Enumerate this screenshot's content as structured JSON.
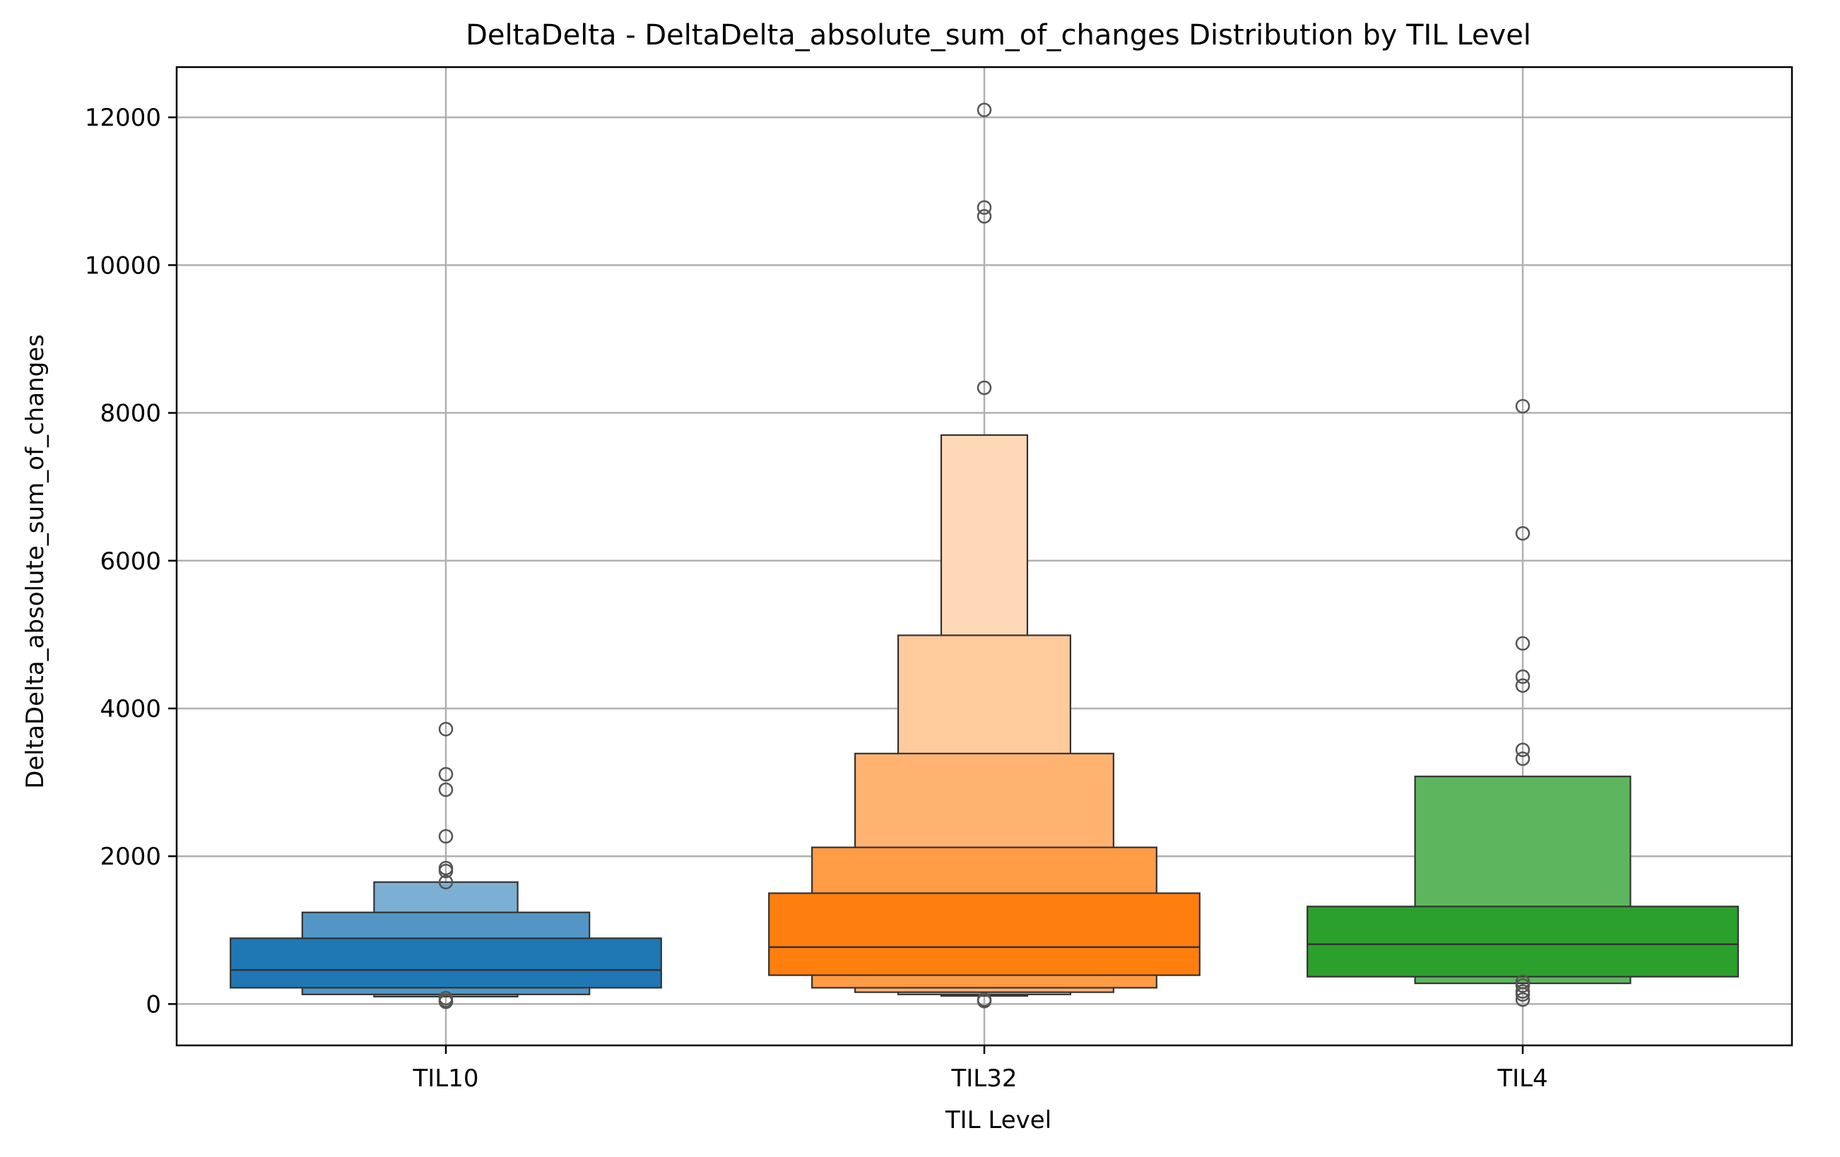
{
  "chart_data": {
    "type": "boxen",
    "title": "DeltaDelta - DeltaDelta_absolute_sum_of_changes Distribution by TIL Level",
    "xlabel": "TIL Level",
    "ylabel": "DeltaDelta_absolute_sum_of_changes",
    "ylim": [
      -560,
      12680
    ],
    "yticks": [
      0,
      2000,
      4000,
      6000,
      8000,
      10000,
      12000
    ],
    "grid": true,
    "legend": "none",
    "categories": [
      "TIL10",
      "TIL32",
      "TIL4"
    ],
    "series": [
      {
        "category": "TIL10",
        "color": "#1f77b4",
        "median": 460,
        "boxes": [
          {
            "low": 220,
            "high": 890
          },
          {
            "low": 130,
            "high": 1240
          },
          {
            "low": 100,
            "high": 1650
          }
        ],
        "outliers": [
          3720,
          3110,
          2900,
          2270,
          1840,
          1800,
          1650,
          80,
          50,
          30
        ]
      },
      {
        "category": "TIL32",
        "color": "#ff7f0e",
        "median": 770,
        "boxes": [
          {
            "low": 390,
            "high": 1500
          },
          {
            "low": 220,
            "high": 2120
          },
          {
            "low": 160,
            "high": 3390
          },
          {
            "low": 130,
            "high": 4990
          },
          {
            "low": 110,
            "high": 7700
          }
        ],
        "outliers": [
          12100,
          10780,
          10660,
          8340,
          60,
          40
        ]
      },
      {
        "category": "TIL4",
        "color": "#2ca02c",
        "median": 810,
        "boxes": [
          {
            "low": 370,
            "high": 1320
          },
          {
            "low": 280,
            "high": 3080
          }
        ],
        "outliers": [
          8090,
          6370,
          4880,
          4430,
          4310,
          3440,
          3320,
          300,
          250,
          170,
          130,
          60
        ]
      }
    ]
  }
}
